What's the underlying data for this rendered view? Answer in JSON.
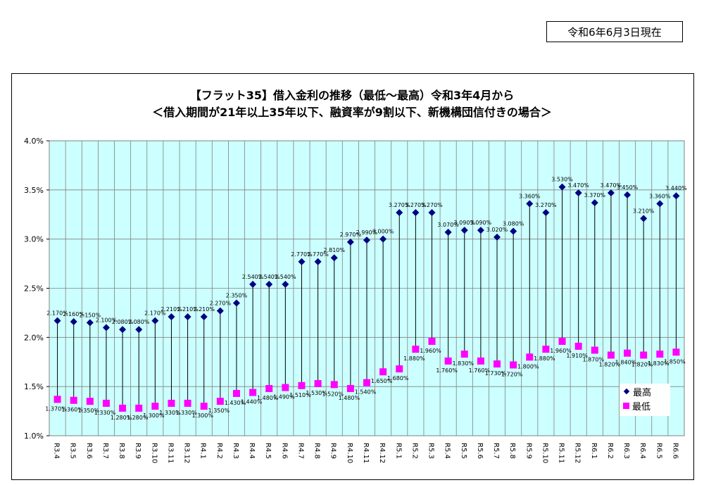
{
  "header": {
    "as_of_date": "令和6年6月3日現在"
  },
  "chart_data": {
    "type": "line",
    "title": "【フラット35】借入金利の推移（最低～最高）令和3年4月から",
    "subtitle": "＜借入期間が21年以上35年以下、融資率が9割以下、新機構団信付きの場合＞",
    "categories": [
      "R3.4",
      "R3.5",
      "R3.6",
      "R3.7",
      "R3.8",
      "R3.9",
      "R3.10",
      "R3.11",
      "R3.12",
      "R4.1",
      "R4.2",
      "R4.3",
      "R4.4",
      "R4.5",
      "R4.6",
      "R4.7",
      "R4.8",
      "R4.9",
      "R4.10",
      "R4.11",
      "R4.12",
      "R5.1",
      "R5.2",
      "R5.3",
      "R5.4",
      "R5.5",
      "R5.6",
      "R5.7",
      "R5.8",
      "R5.9",
      "R5.10",
      "R5.11",
      "R5.12",
      "R6.1",
      "R6.2",
      "R6.3",
      "R6.4",
      "R6.5",
      "R6.6"
    ],
    "series": [
      {
        "name": "最高",
        "color": "#000080",
        "marker": "diamond",
        "values": [
          2.17,
          2.16,
          2.15,
          2.1,
          2.08,
          2.08,
          2.17,
          2.21,
          2.21,
          2.21,
          2.27,
          2.35,
          2.54,
          2.54,
          2.54,
          2.77,
          2.77,
          2.81,
          2.97,
          2.99,
          3.0,
          3.27,
          3.27,
          3.27,
          3.07,
          3.09,
          3.09,
          3.02,
          3.08,
          3.36,
          3.27,
          3.53,
          3.47,
          3.37,
          3.47,
          3.45,
          3.21,
          3.36,
          3.44
        ],
        "labels": [
          "2.170%",
          "2.160%",
          "2.150%",
          "2.100%",
          "2.080%",
          "2.080%",
          "2.170%",
          "2.210%",
          "2.210%",
          "2.210%",
          "2.270%",
          "2.350%",
          "2.540%",
          "2.540%",
          "2.540%",
          "2.770%",
          "2.770%",
          "2.810%",
          "2.970%",
          "2.990%",
          "3.000%",
          "3.270%",
          "3.270%",
          "3.270%",
          "3.070%",
          "3.090%",
          "3.090%",
          "3.020%",
          "3.080%",
          "3.360%",
          "3.270%",
          "3.530%",
          "3.470%",
          "3.370%",
          "3.470%",
          "3.450%",
          "3.210%",
          "3.360%",
          "3.440%"
        ]
      },
      {
        "name": "最低",
        "color": "#ff00ff",
        "marker": "square",
        "values": [
          1.37,
          1.36,
          1.35,
          1.33,
          1.28,
          1.28,
          1.3,
          1.33,
          1.33,
          1.3,
          1.35,
          1.43,
          1.44,
          1.48,
          1.49,
          1.51,
          1.53,
          1.52,
          1.48,
          1.54,
          1.65,
          1.68,
          1.88,
          1.96,
          1.76,
          1.83,
          1.76,
          1.73,
          1.72,
          1.8,
          1.88,
          1.96,
          1.91,
          1.87,
          1.82,
          1.84,
          1.82,
          1.83,
          1.85
        ],
        "labels": [
          "1.370%",
          "1.360%",
          "1.350%",
          "1.330%",
          "1.280%",
          "1.280%",
          "1.300%",
          "1.330%",
          "1.330%",
          "1.300%",
          "1.350%",
          "1.430%",
          "1.440%",
          "1.480%",
          "1.490%",
          "1.510%",
          "1.530%",
          "1.520%",
          "1.480%",
          "1.540%",
          "1.650%",
          "1.680%",
          "1.880%",
          "1.960%",
          "1.760%",
          "1.830%",
          "1.760%",
          "1.730%",
          "1.720%",
          "1.800%",
          "1.880%",
          "1.960%",
          "1.910%",
          "1.870%",
          "1.820%",
          "1.840%",
          "1.820%",
          "1.830%",
          "1.850%"
        ]
      }
    ],
    "ylim": [
      1.0,
      4.0
    ],
    "yticks": [
      "1.0%",
      "1.5%",
      "2.0%",
      "2.5%",
      "3.0%",
      "3.5%",
      "4.0%"
    ],
    "grid": true,
    "plot_background": "#ccffff",
    "high_low_lines": true,
    "legend_position": "bottom-right"
  }
}
